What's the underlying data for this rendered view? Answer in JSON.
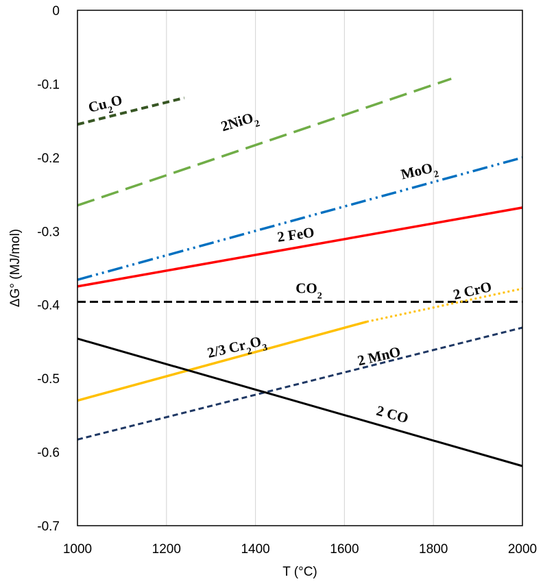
{
  "chart_data": {
    "type": "line",
    "xlabel": "T (°C)",
    "ylabel": "ΔG° (MJ/mol)",
    "xlim": [
      1000,
      2000
    ],
    "ylim": [
      -0.7,
      0
    ],
    "x_ticks": [
      1000,
      1200,
      1400,
      1600,
      1800,
      2000
    ],
    "y_ticks": [
      0,
      -0.1,
      -0.2,
      -0.3,
      -0.4,
      -0.5,
      -0.6,
      -0.7
    ],
    "x_tick_labels": [
      "1000",
      "1200",
      "1400",
      "1600",
      "1800",
      "2000"
    ],
    "y_tick_labels": [
      "0",
      "-0.1",
      "-0.2",
      "-0.3",
      "-0.4",
      "-0.5",
      "-0.6",
      "-0.7"
    ],
    "grid": "vertical",
    "series": [
      {
        "key": "cu2o",
        "label": {
          "parts": [
            {
              "t": "Cu"
            },
            {
              "t": "2",
              "sub": true
            },
            {
              "t": "O"
            }
          ]
        },
        "color": "#375623",
        "dash": "10,6",
        "width": 4,
        "x": [
          1000,
          1240
        ],
        "y": [
          -0.155,
          -0.119
        ],
        "label_at": [
          1065,
          -0.133
        ],
        "label_rot": -14
      },
      {
        "key": "nio2",
        "label": {
          "parts": [
            {
              "t": "2NiO"
            },
            {
              "t": "2",
              "sub": true
            }
          ]
        },
        "color": "#70AD47",
        "dash": "26,11",
        "width": 3.5,
        "x": [
          1000,
          1840
        ],
        "y": [
          -0.265,
          -0.093
        ],
        "label_at": [
          1367,
          -0.157
        ],
        "label_rot": -17
      },
      {
        "key": "moo2",
        "label": {
          "parts": [
            {
              "t": "MoO"
            },
            {
              "t": "2",
              "sub": true
            }
          ]
        },
        "color": "#0070C0",
        "dash": "22,6,3,6,3,6",
        "width": 3.5,
        "x": [
          1000,
          2000
        ],
        "y": [
          -0.366,
          -0.2
        ],
        "label_at": [
          1770,
          -0.224
        ],
        "label_rot": -13
      },
      {
        "key": "feo",
        "label": {
          "parts": [
            {
              "t": "2 FeO"
            }
          ]
        },
        "color": "#FF0000",
        "dash": "",
        "width": 3.5,
        "x": [
          1000,
          2000
        ],
        "y": [
          -0.375,
          -0.268
        ],
        "label_at": [
          1492,
          -0.311
        ],
        "label_rot": -8
      },
      {
        "key": "co2",
        "label": {
          "parts": [
            {
              "t": "CO"
            },
            {
              "t": "2",
              "sub": true
            }
          ]
        },
        "color": "#000000",
        "dash": "12,6",
        "width": 3,
        "x": [
          1000,
          2000
        ],
        "y": [
          -0.396,
          -0.396
        ],
        "label_at": [
          1520,
          -0.384
        ],
        "label_rot": 0
      },
      {
        "key": "cr2o3",
        "label": {
          "parts": [
            {
              "t": "2/3 Cr"
            },
            {
              "t": "2",
              "sub": true
            },
            {
              "t": "O"
            },
            {
              "t": "3",
              "sub": true
            }
          ]
        },
        "color": "#FFC000",
        "dash": "",
        "width": 3.5,
        "x": [
          1000,
          1650
        ],
        "y": [
          -0.53,
          -0.423
        ],
        "label_at": [
          1360,
          -0.463
        ],
        "label_rot": -13
      },
      {
        "key": "cro",
        "label": {
          "parts": [
            {
              "t": "2 CrO"
            }
          ]
        },
        "color": "#FFC000",
        "dash": "3,4",
        "width": 3,
        "x": [
          1650,
          2000
        ],
        "y": [
          -0.423,
          -0.378
        ],
        "label_at": [
          1890,
          -0.387
        ],
        "label_rot": -13
      },
      {
        "key": "mno",
        "label": {
          "parts": [
            {
              "t": "2 MnO"
            }
          ]
        },
        "color": "#1F3864",
        "dash": "8,5",
        "width": 3,
        "x": [
          1000,
          2000
        ],
        "y": [
          -0.583,
          -0.431
        ],
        "label_at": [
          1680,
          -0.476
        ],
        "label_rot": -13
      },
      {
        "key": "co",
        "label": {
          "parts": [
            {
              "t": "2 CO"
            }
          ]
        },
        "color": "#000000",
        "dash": "",
        "width": 3,
        "x": [
          1000,
          2000
        ],
        "y": [
          -0.446,
          -0.619
        ],
        "label_at": [
          1705,
          -0.555
        ],
        "label_rot": 15
      }
    ]
  }
}
